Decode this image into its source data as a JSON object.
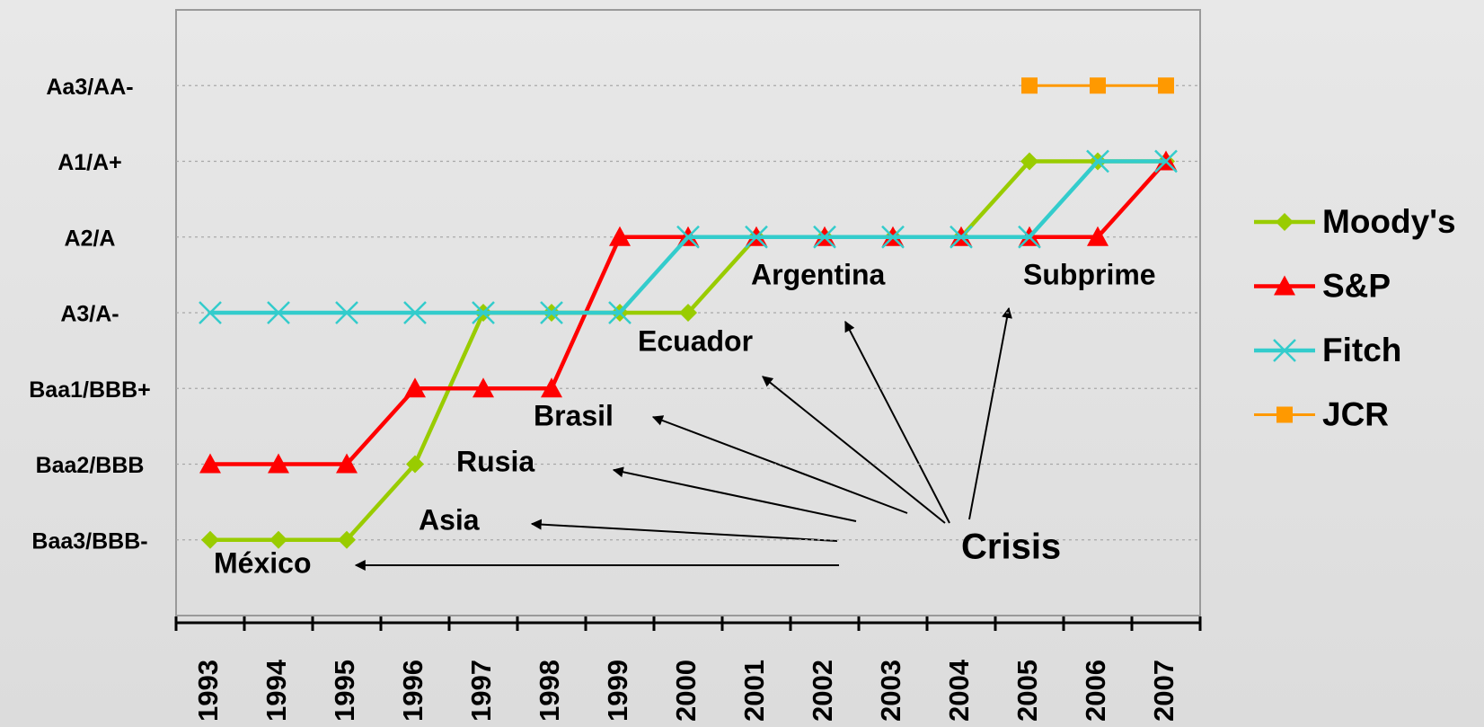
{
  "chart_data": {
    "type": "line",
    "categories": [
      "1993",
      "1994",
      "1995",
      "1996",
      "1997",
      "1998",
      "1999",
      "2000",
      "2001",
      "2002",
      "2003",
      "2004",
      "2005",
      "2006",
      "2007"
    ],
    "series": [
      {
        "name": "Moody's",
        "color": "#99cc00",
        "marker": "diamond",
        "values": [
          1,
          1,
          1,
          2,
          4,
          4,
          4,
          4,
          5,
          5,
          5,
          5,
          6,
          6,
          6
        ]
      },
      {
        "name": "S&P",
        "color": "#ff0000",
        "marker": "triangle",
        "values": [
          2,
          2,
          2,
          3,
          3,
          3,
          5,
          5,
          5,
          5,
          5,
          5,
          5,
          5,
          6
        ]
      },
      {
        "name": "Fitch",
        "color": "#33cccc",
        "marker": "x",
        "values": [
          4,
          4,
          4,
          4,
          4,
          4,
          4,
          5,
          5,
          5,
          5,
          5,
          5,
          6,
          6
        ]
      },
      {
        "name": "JCR",
        "color": "#ff9900",
        "marker": "square",
        "values": [
          null,
          null,
          null,
          null,
          null,
          null,
          null,
          null,
          null,
          null,
          null,
          null,
          7,
          7,
          7
        ]
      }
    ],
    "ylim": [
      0,
      8
    ],
    "yticks": [
      {
        "value": 1,
        "label": "Baa3/BBB-"
      },
      {
        "value": 2,
        "label": "Baa2/BBB"
      },
      {
        "value": 3,
        "label": "Baa1/BBB+"
      },
      {
        "value": 4,
        "label": "A3/A-"
      },
      {
        "value": 5,
        "label": "A2/A"
      },
      {
        "value": 6,
        "label": "A1/A+"
      },
      {
        "value": 7,
        "label": "Aa3/AA-"
      }
    ],
    "grid": true,
    "legend": "right",
    "annotations": [
      "México",
      "Asia",
      "Rusia",
      "Brasil",
      "Ecuador",
      "Argentina",
      "Subprime",
      "Crisis"
    ]
  }
}
